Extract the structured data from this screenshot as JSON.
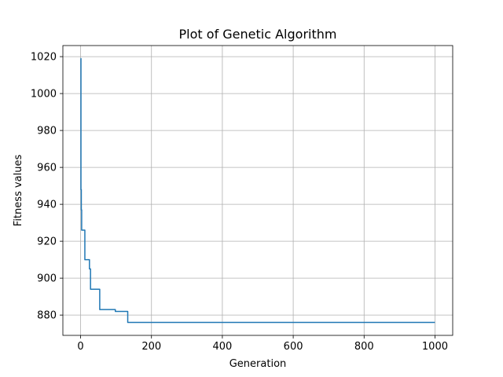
{
  "chart_data": {
    "type": "line",
    "title": "Plot of Genetic Algorithm",
    "xlabel": "Generation",
    "ylabel": "Fitness values",
    "xlim": [
      -50,
      1050
    ],
    "ylim": [
      869,
      1026
    ],
    "xticks": [
      0,
      200,
      400,
      600,
      800,
      1000
    ],
    "yticks": [
      880,
      900,
      920,
      940,
      960,
      980,
      1000,
      1020
    ],
    "grid": true,
    "series": [
      {
        "color": "#1f77b4",
        "step": true,
        "x": [
          0,
          1,
          2,
          3,
          10,
          12,
          25,
          28,
          32,
          54,
          98,
          133,
          1000
        ],
        "y": [
          1019,
          948,
          937,
          926,
          926,
          910,
          905,
          894,
          894,
          883,
          882,
          876,
          876
        ]
      }
    ]
  }
}
